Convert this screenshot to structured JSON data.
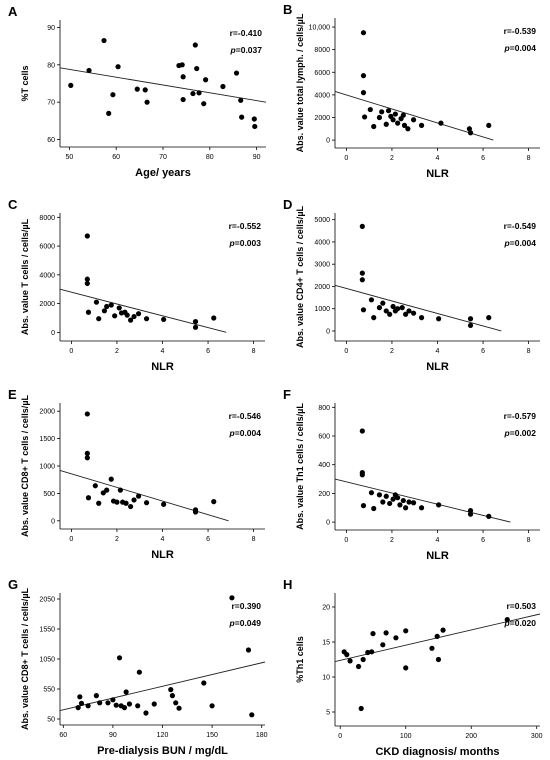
{
  "chart_data": [
    {
      "id": "A",
      "type": "scatter",
      "panel_label": "A",
      "xlabel": "Age/ years",
      "ylabel": "%T cells",
      "xlim": [
        48,
        92
      ],
      "ylim": [
        58,
        92
      ],
      "xticks": [
        50,
        60,
        70,
        80,
        90
      ],
      "yticks": [
        60,
        70,
        80,
        90
      ],
      "r_text": "r=-0.410",
      "p_prefix": "p",
      "p_value": "=0.037",
      "fit": {
        "x": [
          48,
          92
        ],
        "y": [
          79.2,
          70.0
        ]
      },
      "points": [
        {
          "x": 50.3,
          "y": 74.5
        },
        {
          "x": 54.2,
          "y": 78.5
        },
        {
          "x": 57.4,
          "y": 86.5
        },
        {
          "x": 58.4,
          "y": 67.0
        },
        {
          "x": 59.3,
          "y": 72.0
        },
        {
          "x": 60.4,
          "y": 79.5
        },
        {
          "x": 64.5,
          "y": 73.5
        },
        {
          "x": 66.2,
          "y": 73.3
        },
        {
          "x": 66.6,
          "y": 70.0
        },
        {
          "x": 73.4,
          "y": 79.8
        },
        {
          "x": 74.1,
          "y": 80.0
        },
        {
          "x": 74.3,
          "y": 76.8
        },
        {
          "x": 74.3,
          "y": 70.7
        },
        {
          "x": 76.4,
          "y": 72.3
        },
        {
          "x": 76.9,
          "y": 85.3
        },
        {
          "x": 77.2,
          "y": 79.0
        },
        {
          "x": 77.7,
          "y": 72.5
        },
        {
          "x": 78.7,
          "y": 69.6
        },
        {
          "x": 79.1,
          "y": 76.0
        },
        {
          "x": 82.8,
          "y": 74.2
        },
        {
          "x": 85.7,
          "y": 77.8
        },
        {
          "x": 86.6,
          "y": 70.5
        },
        {
          "x": 86.8,
          "y": 66.0
        },
        {
          "x": 89.5,
          "y": 65.5
        },
        {
          "x": 89.6,
          "y": 63.5
        }
      ]
    },
    {
      "id": "B",
      "type": "scatter",
      "panel_label": "B",
      "xlabel": "NLR",
      "ylabel": "Abs. value total lymph. / cells/µL",
      "xlim": [
        -0.5,
        8.5
      ],
      "ylim": [
        -700,
        10800
      ],
      "xticks": [
        0,
        2,
        4,
        6,
        8
      ],
      "yticks": [
        0,
        2000,
        4000,
        6000,
        8000,
        10000
      ],
      "ytick_labels": [
        "0",
        "2000",
        "4000",
        "6000",
        "8000",
        "10,000"
      ],
      "r_text": "r=-0.539",
      "p_prefix": "p",
      "p_value": "=0.004",
      "fit": {
        "x": [
          -0.5,
          6.45
        ],
        "y": [
          4300,
          0
        ]
      },
      "points": [
        {
          "x": 0.75,
          "y": 9500
        },
        {
          "x": 0.75,
          "y": 5700
        },
        {
          "x": 0.75,
          "y": 4200
        },
        {
          "x": 0.8,
          "y": 2050
        },
        {
          "x": 1.05,
          "y": 2700
        },
        {
          "x": 1.2,
          "y": 1200
        },
        {
          "x": 1.45,
          "y": 2000
        },
        {
          "x": 1.55,
          "y": 2500
        },
        {
          "x": 1.75,
          "y": 1400
        },
        {
          "x": 1.85,
          "y": 2600
        },
        {
          "x": 1.95,
          "y": 2100
        },
        {
          "x": 2.05,
          "y": 1800
        },
        {
          "x": 2.15,
          "y": 2300
        },
        {
          "x": 2.25,
          "y": 1500
        },
        {
          "x": 2.4,
          "y": 1900
        },
        {
          "x": 2.5,
          "y": 2200
        },
        {
          "x": 2.55,
          "y": 1300
        },
        {
          "x": 2.7,
          "y": 1000
        },
        {
          "x": 2.95,
          "y": 1800
        },
        {
          "x": 3.3,
          "y": 1300
        },
        {
          "x": 4.15,
          "y": 1500
        },
        {
          "x": 5.4,
          "y": 1000
        },
        {
          "x": 5.45,
          "y": 650
        },
        {
          "x": 6.25,
          "y": 1300
        }
      ]
    },
    {
      "id": "C",
      "type": "scatter",
      "panel_label": "C",
      "xlabel": "NLR",
      "ylabel": "Abs. value T cells / cells/µL",
      "xlim": [
        -0.5,
        8.5
      ],
      "ylim": [
        -600,
        8300
      ],
      "xticks": [
        0,
        2,
        4,
        6,
        8
      ],
      "yticks": [
        0,
        2000,
        4000,
        6000,
        8000
      ],
      "r_text": "r=-0.552",
      "p_prefix": "p",
      "p_value": "=0.003",
      "fit": {
        "x": [
          -0.5,
          6.8
        ],
        "y": [
          3000,
          0
        ]
      },
      "points": [
        {
          "x": 0.7,
          "y": 6700
        },
        {
          "x": 0.7,
          "y": 3700
        },
        {
          "x": 0.7,
          "y": 3400
        },
        {
          "x": 0.75,
          "y": 1400
        },
        {
          "x": 1.1,
          "y": 2100
        },
        {
          "x": 1.2,
          "y": 950
        },
        {
          "x": 1.45,
          "y": 1500
        },
        {
          "x": 1.55,
          "y": 1800
        },
        {
          "x": 1.75,
          "y": 1900
        },
        {
          "x": 1.9,
          "y": 1150
        },
        {
          "x": 2.1,
          "y": 1700
        },
        {
          "x": 2.2,
          "y": 1350
        },
        {
          "x": 2.35,
          "y": 1400
        },
        {
          "x": 2.45,
          "y": 1200
        },
        {
          "x": 2.6,
          "y": 850
        },
        {
          "x": 2.75,
          "y": 1100
        },
        {
          "x": 2.95,
          "y": 1300
        },
        {
          "x": 3.3,
          "y": 950
        },
        {
          "x": 4.05,
          "y": 900
        },
        {
          "x": 5.45,
          "y": 750
        },
        {
          "x": 5.45,
          "y": 350
        },
        {
          "x": 6.25,
          "y": 1000
        }
      ]
    },
    {
      "id": "D",
      "type": "scatter",
      "panel_label": "D",
      "xlabel": "NLR",
      "ylabel": "Abs. value CD4+ T cells / cells/µL",
      "xlim": [
        -0.5,
        8.5
      ],
      "ylim": [
        -450,
        5300
      ],
      "xticks": [
        0,
        2,
        4,
        6,
        8
      ],
      "yticks": [
        0,
        1000,
        2000,
        3000,
        4000,
        5000
      ],
      "r_text": "r=-0.549",
      "p_prefix": "p",
      "p_value": "=0.004",
      "fit": {
        "x": [
          -0.5,
          6.8
        ],
        "y": [
          2050,
          0
        ]
      },
      "points": [
        {
          "x": 0.7,
          "y": 4700
        },
        {
          "x": 0.7,
          "y": 2600
        },
        {
          "x": 0.7,
          "y": 2300
        },
        {
          "x": 0.75,
          "y": 950
        },
        {
          "x": 1.1,
          "y": 1400
        },
        {
          "x": 1.2,
          "y": 600
        },
        {
          "x": 1.45,
          "y": 1050
        },
        {
          "x": 1.6,
          "y": 1250
        },
        {
          "x": 1.75,
          "y": 900
        },
        {
          "x": 1.9,
          "y": 750
        },
        {
          "x": 2.05,
          "y": 1100
        },
        {
          "x": 2.15,
          "y": 900
        },
        {
          "x": 2.25,
          "y": 1000
        },
        {
          "x": 2.45,
          "y": 1050
        },
        {
          "x": 2.6,
          "y": 750
        },
        {
          "x": 2.75,
          "y": 900
        },
        {
          "x": 2.95,
          "y": 800
        },
        {
          "x": 3.3,
          "y": 600
        },
        {
          "x": 4.05,
          "y": 550
        },
        {
          "x": 5.45,
          "y": 550
        },
        {
          "x": 5.45,
          "y": 250
        },
        {
          "x": 6.25,
          "y": 600
        }
      ]
    },
    {
      "id": "E",
      "type": "scatter",
      "panel_label": "E",
      "xlabel": "NLR",
      "ylabel": "Abs. value CD8+ T cells / cells/µL",
      "xlim": [
        -0.5,
        8.5
      ],
      "ylim": [
        -150,
        2150
      ],
      "xticks": [
        0,
        2,
        4,
        6,
        8
      ],
      "yticks": [
        0,
        500,
        1000,
        1500,
        2000
      ],
      "r_text": "r=-0.546",
      "p_prefix": "p",
      "p_value": "=0.004",
      "fit": {
        "x": [
          -0.5,
          6.9
        ],
        "y": [
          920,
          0
        ]
      },
      "points": [
        {
          "x": 0.7,
          "y": 1950
        },
        {
          "x": 0.7,
          "y": 1230
        },
        {
          "x": 0.7,
          "y": 1150
        },
        {
          "x": 0.75,
          "y": 420
        },
        {
          "x": 1.05,
          "y": 640
        },
        {
          "x": 1.2,
          "y": 320
        },
        {
          "x": 1.4,
          "y": 510
        },
        {
          "x": 1.55,
          "y": 560
        },
        {
          "x": 1.75,
          "y": 760
        },
        {
          "x": 1.85,
          "y": 360
        },
        {
          "x": 2.0,
          "y": 340
        },
        {
          "x": 2.15,
          "y": 560
        },
        {
          "x": 2.25,
          "y": 340
        },
        {
          "x": 2.4,
          "y": 320
        },
        {
          "x": 2.6,
          "y": 260
        },
        {
          "x": 2.75,
          "y": 380
        },
        {
          "x": 2.95,
          "y": 450
        },
        {
          "x": 3.3,
          "y": 330
        },
        {
          "x": 4.05,
          "y": 300
        },
        {
          "x": 5.45,
          "y": 200
        },
        {
          "x": 5.45,
          "y": 160
        },
        {
          "x": 6.25,
          "y": 350
        }
      ]
    },
    {
      "id": "F",
      "type": "scatter",
      "panel_label": "F",
      "xlabel": "NLR",
      "ylabel": "Abs. value Th1 cells / cells/µL",
      "xlim": [
        -0.5,
        8.5
      ],
      "ylim": [
        -55,
        830
      ],
      "xticks": [
        0,
        2,
        4,
        6,
        8
      ],
      "yticks": [
        0,
        200,
        400,
        600,
        800
      ],
      "r_text": "r=-0.579",
      "p_prefix": "p",
      "p_value": "=0.002",
      "fit": {
        "x": [
          -0.5,
          7.2
        ],
        "y": [
          300,
          0
        ]
      },
      "points": [
        {
          "x": 0.7,
          "y": 635
        },
        {
          "x": 0.7,
          "y": 345
        },
        {
          "x": 0.7,
          "y": 330
        },
        {
          "x": 0.75,
          "y": 115
        },
        {
          "x": 1.1,
          "y": 205
        },
        {
          "x": 1.2,
          "y": 95
        },
        {
          "x": 1.45,
          "y": 190
        },
        {
          "x": 1.6,
          "y": 140
        },
        {
          "x": 1.75,
          "y": 180
        },
        {
          "x": 1.9,
          "y": 130
        },
        {
          "x": 2.05,
          "y": 160
        },
        {
          "x": 2.15,
          "y": 190
        },
        {
          "x": 2.25,
          "y": 170
        },
        {
          "x": 2.35,
          "y": 120
        },
        {
          "x": 2.5,
          "y": 150
        },
        {
          "x": 2.6,
          "y": 100
        },
        {
          "x": 2.75,
          "y": 140
        },
        {
          "x": 2.95,
          "y": 135
        },
        {
          "x": 3.3,
          "y": 100
        },
        {
          "x": 4.05,
          "y": 120
        },
        {
          "x": 5.45,
          "y": 80
        },
        {
          "x": 5.45,
          "y": 55
        },
        {
          "x": 6.25,
          "y": 40
        }
      ]
    },
    {
      "id": "G",
      "type": "scatter",
      "panel_label": "G",
      "xlabel": "Pre-dialysis BUN / mg/dL",
      "ylabel": "Abs. value CD8+ T cells / cells/µL",
      "xlim": [
        58,
        182
      ],
      "ylim": [
        -50,
        2150
      ],
      "xticks": [
        60,
        90,
        120,
        150,
        180
      ],
      "yticks": [
        50,
        550,
        1050,
        1550,
        2050
      ],
      "r_text": "r=0.390",
      "p_prefix": "p",
      "p_value": "=0.049",
      "fit": {
        "x": [
          58,
          182
        ],
        "y": [
          190,
          1000
        ]
      },
      "points": [
        {
          "x": 69,
          "y": 240
        },
        {
          "x": 70,
          "y": 420
        },
        {
          "x": 71,
          "y": 310
        },
        {
          "x": 75,
          "y": 270
        },
        {
          "x": 80,
          "y": 440
        },
        {
          "x": 82,
          "y": 320
        },
        {
          "x": 87,
          "y": 320
        },
        {
          "x": 90,
          "y": 370
        },
        {
          "x": 92,
          "y": 280
        },
        {
          "x": 94,
          "y": 1070
        },
        {
          "x": 95,
          "y": 270
        },
        {
          "x": 97,
          "y": 240
        },
        {
          "x": 98,
          "y": 500
        },
        {
          "x": 100,
          "y": 300
        },
        {
          "x": 105,
          "y": 270
        },
        {
          "x": 106,
          "y": 830
        },
        {
          "x": 110,
          "y": 150
        },
        {
          "x": 115,
          "y": 300
        },
        {
          "x": 125,
          "y": 540
        },
        {
          "x": 126,
          "y": 440
        },
        {
          "x": 128,
          "y": 320
        },
        {
          "x": 130,
          "y": 230
        },
        {
          "x": 145,
          "y": 650
        },
        {
          "x": 150,
          "y": 270
        },
        {
          "x": 162,
          "y": 2070
        },
        {
          "x": 172,
          "y": 1200
        },
        {
          "x": 174,
          "y": 120
        }
      ]
    },
    {
      "id": "H",
      "type": "scatter",
      "panel_label": "H",
      "xlabel": "CKD diagnosis/ months",
      "ylabel": "%Th1 cells",
      "xlim": [
        -8,
        305
      ],
      "ylim": [
        3,
        22
      ],
      "xticks": [
        0,
        100,
        200,
        300
      ],
      "yticks": [
        5,
        10,
        15,
        20
      ],
      "r_text": "r=0.503",
      "p_prefix": "p",
      "p_value": "=0.020",
      "fit": {
        "x": [
          -8,
          305
        ],
        "y": [
          12.2,
          19.0
        ]
      },
      "points": [
        {
          "x": 6,
          "y": 13.6
        },
        {
          "x": 10,
          "y": 13.2
        },
        {
          "x": 15,
          "y": 12.3
        },
        {
          "x": 28,
          "y": 11.5
        },
        {
          "x": 32,
          "y": 5.5
        },
        {
          "x": 35,
          "y": 12.5
        },
        {
          "x": 42,
          "y": 13.5
        },
        {
          "x": 48,
          "y": 13.6
        },
        {
          "x": 50,
          "y": 16.2
        },
        {
          "x": 65,
          "y": 14.6
        },
        {
          "x": 70,
          "y": 16.3
        },
        {
          "x": 85,
          "y": 15.6
        },
        {
          "x": 100,
          "y": 11.3
        },
        {
          "x": 100,
          "y": 16.6
        },
        {
          "x": 140,
          "y": 14.1
        },
        {
          "x": 148,
          "y": 15.8
        },
        {
          "x": 150,
          "y": 12.5
        },
        {
          "x": 157,
          "y": 16.7
        },
        {
          "x": 255,
          "y": 18.2
        }
      ]
    }
  ]
}
